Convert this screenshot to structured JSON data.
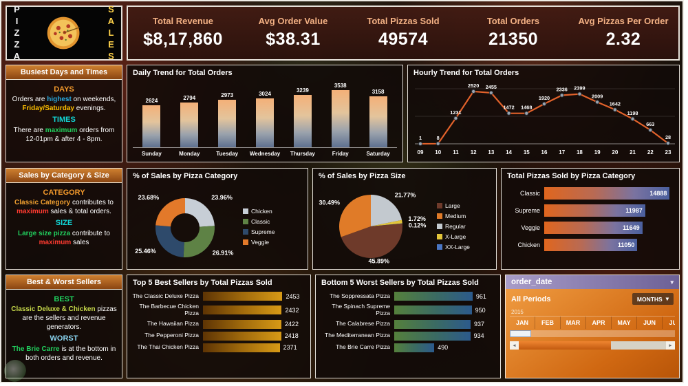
{
  "logo": {
    "left_text": "PIZZA",
    "right_text": "SALES"
  },
  "kpis": [
    {
      "label": "Total Revenue",
      "value": "$8,17,860"
    },
    {
      "label": "Avg Order Value",
      "value": "$38.31"
    },
    {
      "label": "Total Pizzas Sold",
      "value": "49574"
    },
    {
      "label": "Total Orders",
      "value": "21350"
    },
    {
      "label": "Avg Pizzas Per Order",
      "value": "2.32"
    }
  ],
  "sidebar": {
    "panel1": {
      "title": "Busiest Days and Times",
      "days_heading": "DAYS",
      "days_parts": [
        "Orders are ",
        "highest",
        " on weekends, ",
        "Friday/Saturday",
        " evenings."
      ],
      "times_heading": "TIMES",
      "times_parts": [
        "There are ",
        "maximum",
        " orders from 12-01pm & after 4 - 8pm."
      ]
    },
    "panel2": {
      "title": "Sales by Category & Size",
      "category_heading": "CATEGORY",
      "category_parts": [
        "Classic Category",
        " contributes to ",
        "maximum",
        " sales & total orders."
      ],
      "size_heading": "SIZE",
      "size_parts": [
        "Large size pizza",
        " contribute to ",
        "maximum",
        " sales"
      ]
    },
    "panel3": {
      "title": "Best & Worst Sellers",
      "best_heading": "BEST",
      "best_parts": [
        "Classic Deluxe & Chicken",
        " pizzas are the sellers and revenue generators."
      ],
      "worst_heading": "WORST",
      "worst_parts": [
        "The Brie Carre",
        " is at the bottom in both orders and revenue."
      ]
    }
  },
  "chart_data": [
    {
      "id": "daily_orders",
      "type": "bar",
      "title": "Daily Trend for Total Orders",
      "categories": [
        "Sunday",
        "Monday",
        "Tuesday",
        "Wednesday",
        "Thursday",
        "Friday",
        "Saturday"
      ],
      "values": [
        2624,
        2794,
        2973,
        3024,
        3239,
        3538,
        3158
      ],
      "ylim": [
        0,
        3600
      ],
      "grid": false,
      "data_labels": true
    },
    {
      "id": "hourly_orders",
      "type": "line",
      "title": "Hourly Trend for Total Orders",
      "x": [
        "09",
        "10",
        "11",
        "12",
        "13",
        "14",
        "15",
        "16",
        "17",
        "18",
        "19",
        "20",
        "21",
        "22",
        "23"
      ],
      "values": [
        1,
        8,
        1231,
        2520,
        2455,
        1472,
        1468,
        1920,
        2336,
        2399,
        2009,
        1642,
        1198,
        663,
        28
      ],
      "ylim": [
        0,
        2650
      ],
      "line_color": "#e2622b",
      "data_labels": true
    },
    {
      "id": "category_sales_share",
      "type": "pie",
      "subtype": "donut",
      "title": "% of Sales by Pizza Category",
      "segments": [
        {
          "label": "Chicken",
          "value": 23.96,
          "display": "23.96%",
          "color": "#c7ced6"
        },
        {
          "label": "Classic",
          "value": 26.91,
          "display": "26.91%",
          "color": "#5e8245"
        },
        {
          "label": "Supreme",
          "value": 25.46,
          "display": "25.46%",
          "color": "#2e4a6b"
        },
        {
          "label": "Veggie",
          "value": 23.68,
          "display": "23.68%",
          "color": "#e2792a"
        }
      ],
      "legend": [
        "Chicken",
        "Classic",
        "Supreme",
        "Veggie"
      ],
      "legend_position": "right"
    },
    {
      "id": "size_sales_share",
      "type": "pie",
      "title": "% of Sales by Pizza Size",
      "segments": [
        {
          "label": "Regular",
          "value": 21.77,
          "display": "21.77%",
          "color": "#c3c9cf"
        },
        {
          "label": "X-Large",
          "value": 1.72,
          "display": "1.72%",
          "color": "#e3c53a"
        },
        {
          "label": "XX-Large",
          "value": 0.12,
          "display": "0.12%",
          "color": "#4a76c4"
        },
        {
          "label": "Large",
          "value": 45.89,
          "display": "45.89%",
          "color": "#6e3a2a"
        },
        {
          "label": "Medium",
          "value": 30.49,
          "display": "30.49%",
          "color": "#e07b28"
        }
      ],
      "legend": [
        "Large",
        "Medium",
        "Regular",
        "X-Large",
        "XX-Large"
      ],
      "legend_position": "right"
    },
    {
      "id": "pizzas_by_category",
      "type": "bar",
      "orientation": "horizontal",
      "title": "Total Pizzas Sold by Pizza Category",
      "categories": [
        "Classic",
        "Supreme",
        "Veggie",
        "Chicken"
      ],
      "values": [
        14888,
        11987,
        11649,
        11050
      ],
      "data_labels": true
    },
    {
      "id": "top5_best_sellers",
      "type": "bar",
      "orientation": "horizontal",
      "title": "Top 5 Best Sellers by Total Pizzas Sold",
      "categories": [
        "The Classic Deluxe Pizza",
        "The Barbecue Chicken Pizza",
        "The Hawaiian Pizza",
        "The Pepperoni Pizza",
        "The Thai Chicken Pizza"
      ],
      "values": [
        2453,
        2432,
        2422,
        2418,
        2371
      ],
      "data_labels": true
    },
    {
      "id": "bottom5_worst_sellers",
      "type": "bar",
      "orientation": "horizontal",
      "title": "Bottom 5 Worst Sellers by Total Pizzas Sold",
      "categories": [
        "The Soppressata Pizza",
        "The Spinach Supreme Pizza",
        "The Calabrese Pizza",
        "The Mediterranean Pizza",
        "The Brie Carre Pizza"
      ],
      "values": [
        961,
        950,
        937,
        934,
        490
      ],
      "data_labels": true
    }
  ],
  "timeline": {
    "field_name": "order_date",
    "period_label": "All Periods",
    "granularity_label": "MONTHS",
    "year_label": "2015",
    "months": [
      "JAN",
      "FEB",
      "MAR",
      "APR",
      "MAY",
      "JUN",
      "JUL"
    ]
  },
  "colors": {
    "accent_orange": "#e2702a",
    "kpi_label": "#f3b184",
    "panel_header_top": "#cf8030",
    "panel_header_bottom": "#8a4512",
    "highlight_blue": "#29abe2",
    "highlight_amber": "#ffc000",
    "highlight_green": "#21d05e",
    "highlight_cyan": "#12d6d6",
    "highlight_red": "#ff3b30",
    "highlight_olive": "#c6d84a"
  }
}
